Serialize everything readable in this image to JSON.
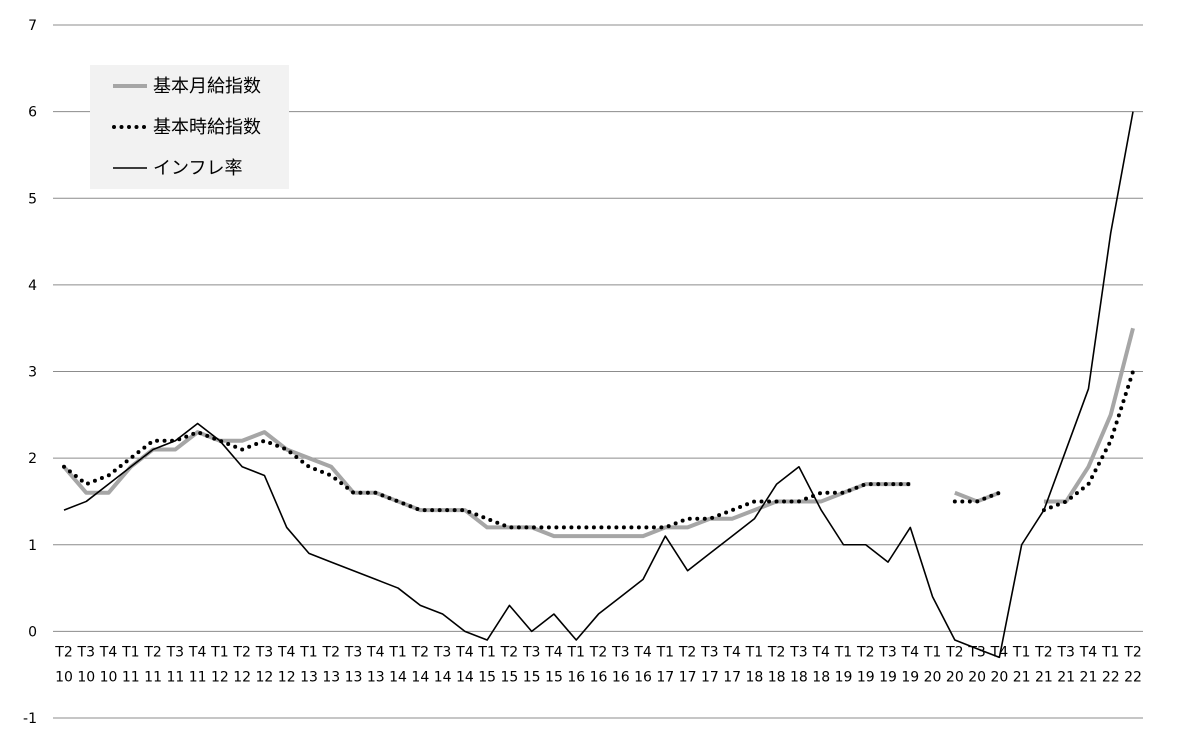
{
  "chart_data": {
    "type": "line",
    "title": "",
    "xlabel": "",
    "ylabel": "",
    "ylim": [
      -1,
      7
    ],
    "yticks": [
      -1,
      0,
      1,
      2,
      3,
      4,
      5,
      6,
      7
    ],
    "grid": true,
    "legend_position": "top-left",
    "categories": [
      "T2 10",
      "T3 10",
      "T4 10",
      "T1 11",
      "T2 11",
      "T3 11",
      "T4 11",
      "T1 12",
      "T2 12",
      "T3 12",
      "T4 12",
      "T1 13",
      "T2 13",
      "T3 13",
      "T4 13",
      "T1 14",
      "T2 14",
      "T3 14",
      "T4 14",
      "T1 15",
      "T2 15",
      "T3 15",
      "T4 15",
      "T1 16",
      "T2 16",
      "T3 16",
      "T4 16",
      "T1 17",
      "T2 17",
      "T3 17",
      "T4 17",
      "T1 18",
      "T2 18",
      "T3 18",
      "T4 18",
      "T1 19",
      "T2 19",
      "T3 19",
      "T4 19",
      "T1 20",
      "T2 20",
      "T3 20",
      "T4 20",
      "T1 21",
      "T2 21",
      "T3 21",
      "T4 21",
      "T1 22",
      "T2 22"
    ],
    "x_label_rows": [
      [
        "T2",
        "T3",
        "T4",
        "T1",
        "T2",
        "T3",
        "T4",
        "T1",
        "T2",
        "T3",
        "T4",
        "T1",
        "T2",
        "T3",
        "T4",
        "T1",
        "T2",
        "T3",
        "T4",
        "T1",
        "T2",
        "T3",
        "T4",
        "T1",
        "T2",
        "T3",
        "T4",
        "T1",
        "T2",
        "T3",
        "T4",
        "T1",
        "T2",
        "T3",
        "T4",
        "T1",
        "T2",
        "T3",
        "T4",
        "T1",
        "T2",
        "T3",
        "T4",
        "T1",
        "T2",
        "T3",
        "T4",
        "T1",
        "T2"
      ],
      [
        "10",
        "10",
        "10",
        "11",
        "11",
        "11",
        "11",
        "12",
        "12",
        "12",
        "12",
        "13",
        "13",
        "13",
        "13",
        "14",
        "14",
        "14",
        "14",
        "15",
        "15",
        "15",
        "15",
        "16",
        "16",
        "16",
        "16",
        "17",
        "17",
        "17",
        "17",
        "18",
        "18",
        "18",
        "18",
        "19",
        "19",
        "19",
        "19",
        "20",
        "20",
        "20",
        "20",
        "21",
        "21",
        "21",
        "21",
        "22",
        "22"
      ]
    ],
    "series": [
      {
        "name": "基本月給指数",
        "style": "thick-gray",
        "color": "#a6a6a6",
        "values": [
          1.9,
          1.6,
          1.6,
          1.9,
          2.1,
          2.1,
          2.3,
          2.2,
          2.2,
          2.3,
          2.1,
          2.0,
          1.9,
          1.6,
          1.6,
          1.5,
          1.4,
          1.4,
          1.4,
          1.2,
          1.2,
          1.2,
          1.1,
          1.1,
          1.1,
          1.1,
          1.1,
          1.2,
          1.2,
          1.3,
          1.3,
          1.4,
          1.5,
          1.5,
          1.5,
          1.6,
          1.7,
          1.7,
          1.7,
          null,
          1.6,
          1.5,
          1.6,
          null,
          1.5,
          1.5,
          1.9,
          2.5,
          3.5
        ]
      },
      {
        "name": "基本時給指数",
        "style": "dotted-black",
        "color": "#000000",
        "values": [
          1.9,
          1.7,
          1.8,
          2.0,
          2.2,
          2.2,
          2.3,
          2.2,
          2.1,
          2.2,
          2.1,
          1.9,
          1.8,
          1.6,
          1.6,
          1.5,
          1.4,
          1.4,
          1.4,
          1.3,
          1.2,
          1.2,
          1.2,
          1.2,
          1.2,
          1.2,
          1.2,
          1.2,
          1.3,
          1.3,
          1.4,
          1.5,
          1.5,
          1.5,
          1.6,
          1.6,
          1.7,
          1.7,
          1.7,
          null,
          1.5,
          1.5,
          1.6,
          null,
          1.4,
          1.5,
          1.7,
          2.2,
          3.0
        ]
      },
      {
        "name": "インフレ率",
        "style": "thin-black",
        "color": "#000000",
        "values": [
          1.4,
          1.5,
          1.7,
          1.9,
          2.1,
          2.2,
          2.4,
          2.2,
          1.9,
          1.8,
          1.2,
          0.9,
          0.8,
          0.7,
          0.6,
          0.5,
          0.3,
          0.2,
          0.0,
          -0.1,
          0.3,
          0.0,
          0.2,
          -0.1,
          0.2,
          0.4,
          0.6,
          1.1,
          0.7,
          0.9,
          1.1,
          1.3,
          1.7,
          1.9,
          1.4,
          1.0,
          1.0,
          0.8,
          1.2,
          0.4,
          -0.1,
          -0.2,
          -0.3,
          1.0,
          1.4,
          2.1,
          2.8,
          4.6,
          6.0
        ]
      }
    ]
  }
}
